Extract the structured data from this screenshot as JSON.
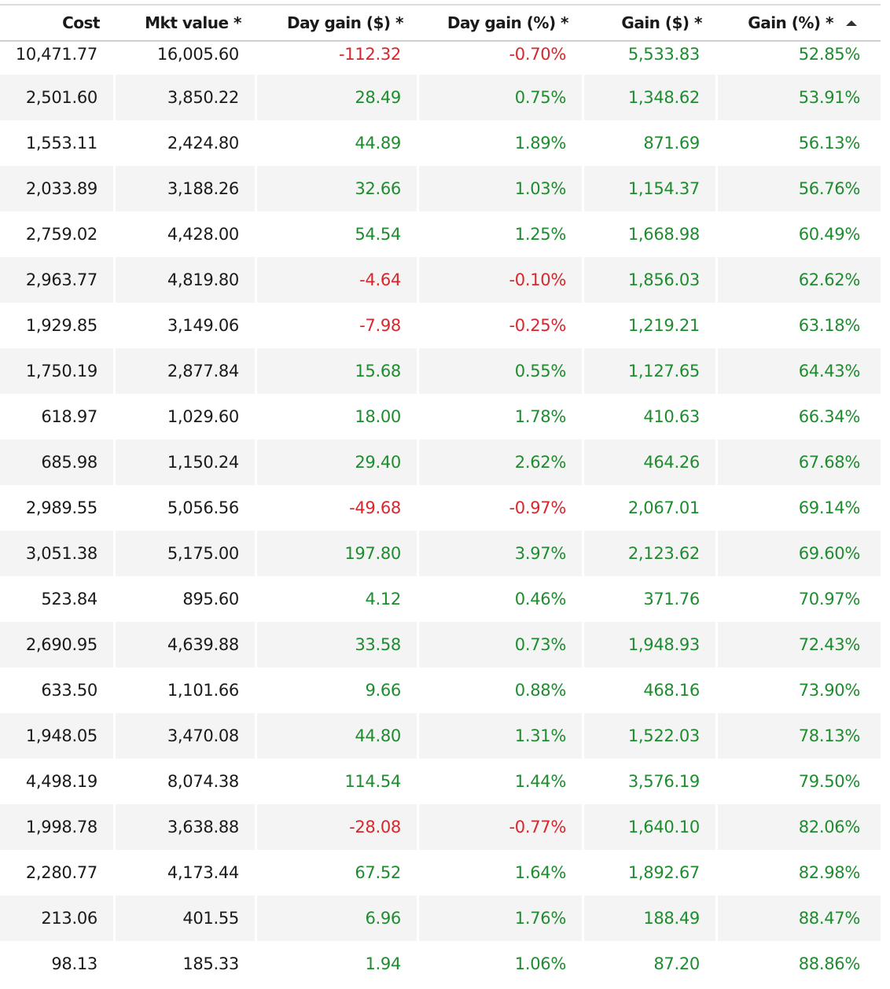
{
  "columns": [
    {
      "key": "cost",
      "label": "Cost",
      "sorted": false
    },
    {
      "key": "mkt_value",
      "label": "Mkt value *",
      "sorted": false
    },
    {
      "key": "day_gain_usd",
      "label": "Day gain ($) *",
      "sorted": false
    },
    {
      "key": "day_gain_pct",
      "label": "Day gain (%) *",
      "sorted": false
    },
    {
      "key": "gain_usd",
      "label": "Gain ($) *",
      "sorted": false
    },
    {
      "key": "gain_pct",
      "label": "Gain (%) *",
      "sorted": true,
      "sort_direction": "ascending"
    }
  ],
  "colors": {
    "positive": "#1e8c2e",
    "negative": "#d9262c",
    "neutral": "#1a1a1a",
    "alt_row": "#f4f4f4"
  },
  "rows": [
    {
      "cost": "10,471.77",
      "mkt_value": "16,005.60",
      "day_gain_usd": "-112.32",
      "day_gain_pct": "-0.70%",
      "gain_usd": "5,533.83",
      "gain_pct": "52.85%"
    },
    {
      "cost": "2,501.60",
      "mkt_value": "3,850.22",
      "day_gain_usd": "28.49",
      "day_gain_pct": "0.75%",
      "gain_usd": "1,348.62",
      "gain_pct": "53.91%"
    },
    {
      "cost": "1,553.11",
      "mkt_value": "2,424.80",
      "day_gain_usd": "44.89",
      "day_gain_pct": "1.89%",
      "gain_usd": "871.69",
      "gain_pct": "56.13%"
    },
    {
      "cost": "2,033.89",
      "mkt_value": "3,188.26",
      "day_gain_usd": "32.66",
      "day_gain_pct": "1.03%",
      "gain_usd": "1,154.37",
      "gain_pct": "56.76%"
    },
    {
      "cost": "2,759.02",
      "mkt_value": "4,428.00",
      "day_gain_usd": "54.54",
      "day_gain_pct": "1.25%",
      "gain_usd": "1,668.98",
      "gain_pct": "60.49%"
    },
    {
      "cost": "2,963.77",
      "mkt_value": "4,819.80",
      "day_gain_usd": "-4.64",
      "day_gain_pct": "-0.10%",
      "gain_usd": "1,856.03",
      "gain_pct": "62.62%"
    },
    {
      "cost": "1,929.85",
      "mkt_value": "3,149.06",
      "day_gain_usd": "-7.98",
      "day_gain_pct": "-0.25%",
      "gain_usd": "1,219.21",
      "gain_pct": "63.18%"
    },
    {
      "cost": "1,750.19",
      "mkt_value": "2,877.84",
      "day_gain_usd": "15.68",
      "day_gain_pct": "0.55%",
      "gain_usd": "1,127.65",
      "gain_pct": "64.43%"
    },
    {
      "cost": "618.97",
      "mkt_value": "1,029.60",
      "day_gain_usd": "18.00",
      "day_gain_pct": "1.78%",
      "gain_usd": "410.63",
      "gain_pct": "66.34%"
    },
    {
      "cost": "685.98",
      "mkt_value": "1,150.24",
      "day_gain_usd": "29.40",
      "day_gain_pct": "2.62%",
      "gain_usd": "464.26",
      "gain_pct": "67.68%"
    },
    {
      "cost": "2,989.55",
      "mkt_value": "5,056.56",
      "day_gain_usd": "-49.68",
      "day_gain_pct": "-0.97%",
      "gain_usd": "2,067.01",
      "gain_pct": "69.14%"
    },
    {
      "cost": "3,051.38",
      "mkt_value": "5,175.00",
      "day_gain_usd": "197.80",
      "day_gain_pct": "3.97%",
      "gain_usd": "2,123.62",
      "gain_pct": "69.60%"
    },
    {
      "cost": "523.84",
      "mkt_value": "895.60",
      "day_gain_usd": "4.12",
      "day_gain_pct": "0.46%",
      "gain_usd": "371.76",
      "gain_pct": "70.97%"
    },
    {
      "cost": "2,690.95",
      "mkt_value": "4,639.88",
      "day_gain_usd": "33.58",
      "day_gain_pct": "0.73%",
      "gain_usd": "1,948.93",
      "gain_pct": "72.43%"
    },
    {
      "cost": "633.50",
      "mkt_value": "1,101.66",
      "day_gain_usd": "9.66",
      "day_gain_pct": "0.88%",
      "gain_usd": "468.16",
      "gain_pct": "73.90%"
    },
    {
      "cost": "1,948.05",
      "mkt_value": "3,470.08",
      "day_gain_usd": "44.80",
      "day_gain_pct": "1.31%",
      "gain_usd": "1,522.03",
      "gain_pct": "78.13%"
    },
    {
      "cost": "4,498.19",
      "mkt_value": "8,074.38",
      "day_gain_usd": "114.54",
      "day_gain_pct": "1.44%",
      "gain_usd": "3,576.19",
      "gain_pct": "79.50%"
    },
    {
      "cost": "1,998.78",
      "mkt_value": "3,638.88",
      "day_gain_usd": "-28.08",
      "day_gain_pct": "-0.77%",
      "gain_usd": "1,640.10",
      "gain_pct": "82.06%"
    },
    {
      "cost": "2,280.77",
      "mkt_value": "4,173.44",
      "day_gain_usd": "67.52",
      "day_gain_pct": "1.64%",
      "gain_usd": "1,892.67",
      "gain_pct": "82.98%"
    },
    {
      "cost": "213.06",
      "mkt_value": "401.55",
      "day_gain_usd": "6.96",
      "day_gain_pct": "1.76%",
      "gain_usd": "188.49",
      "gain_pct": "88.47%"
    },
    {
      "cost": "98.13",
      "mkt_value": "185.33",
      "day_gain_usd": "1.94",
      "day_gain_pct": "1.06%",
      "gain_usd": "87.20",
      "gain_pct": "88.86%"
    }
  ]
}
